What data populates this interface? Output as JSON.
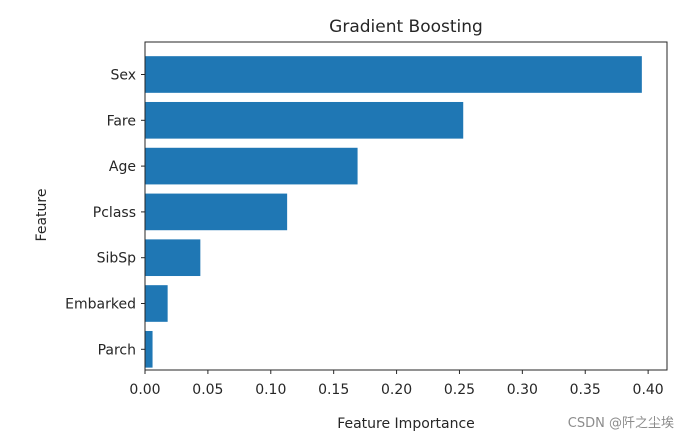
{
  "chart_data": {
    "type": "bar",
    "orientation": "horizontal",
    "title": "Gradient Boosting",
    "xlabel": "Feature Importance",
    "ylabel": "Feature",
    "categories": [
      "Sex",
      "Fare",
      "Age",
      "Pclass",
      "SibSp",
      "Embarked",
      "Parch"
    ],
    "values": [
      0.395,
      0.253,
      0.169,
      0.113,
      0.044,
      0.018,
      0.006
    ],
    "xlim": [
      0,
      0.415
    ],
    "xticks": [
      0.0,
      0.05,
      0.1,
      0.15,
      0.2,
      0.25,
      0.3,
      0.35,
      0.4
    ],
    "xtick_labels": [
      "0.00",
      "0.05",
      "0.10",
      "0.15",
      "0.20",
      "0.25",
      "0.30",
      "0.35",
      "0.40"
    ],
    "bar_color": "#1f77b4",
    "grid": false
  },
  "watermark": "CSDN @阡之尘埃"
}
